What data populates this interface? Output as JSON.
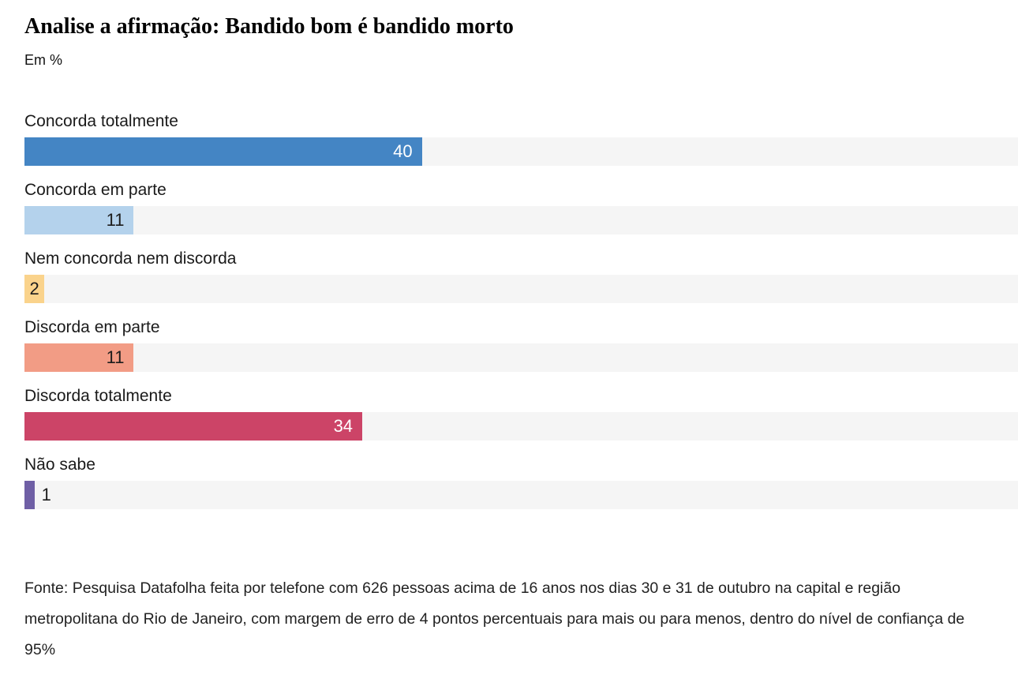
{
  "chart": {
    "title": "Analise a afirmação: Bandido bom é bandido morto",
    "subtitle": "Em %",
    "source": "Fonte: Pesquisa Datafolha feita por telefone com 626 pessoas acima de 16 anos nos dias 30 e 31 de outubro na capital e região metropolitana do Rio de Janeiro, com margem de erro de 4 pontos percentuais para mais ou para menos, dentro do nível de confiança de 95%"
  },
  "chart_data": {
    "type": "bar",
    "orientation": "horizontal",
    "title": "Analise a afirmação: Bandido bom é bandido morto",
    "subtitle": "Em %",
    "xlabel": "",
    "ylabel": "",
    "xlim": [
      0,
      100
    ],
    "grid": false,
    "legend": false,
    "unit": "%",
    "track_color": "#f5f5f5",
    "categories": [
      "Concorda totalmente",
      "Concorda em parte",
      "Nem concorda nem discorda",
      "Discorda em parte",
      "Discorda totalmente",
      "Não sabe"
    ],
    "values": [
      40,
      11,
      2,
      11,
      34,
      1
    ],
    "bar_colors": [
      "#4485c4",
      "#b4d2ec",
      "#fad38c",
      "#f29c85",
      "#cc4467",
      "#6f5fa5"
    ],
    "value_label_colors": [
      "#ffffff",
      "#1c1c1c",
      "#1c1c1c",
      "#1c1c1c",
      "#ffffff",
      "#1c1c1c"
    ]
  }
}
